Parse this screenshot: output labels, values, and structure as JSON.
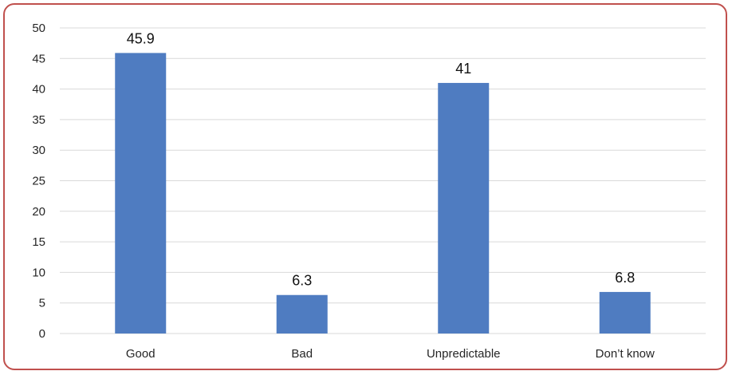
{
  "chart_data": {
    "type": "bar",
    "categories": [
      "Good",
      "Bad",
      "Unpredictable",
      "Don’t know"
    ],
    "values": [
      45.9,
      6.3,
      41,
      6.8
    ],
    "data_labels": [
      "45.9",
      "6.3",
      "41",
      "6.8"
    ],
    "title": "",
    "xlabel": "",
    "ylabel": "",
    "ylim": [
      0,
      50
    ],
    "yticks": [
      "0",
      "5",
      "10",
      "15",
      "20",
      "25",
      "30",
      "35",
      "40",
      "45",
      "50"
    ],
    "grid": true,
    "legend": "none",
    "bar_color": "#4f7cc1",
    "grid_color": "#d9d9d9",
    "frame_color": "#c0504d"
  }
}
